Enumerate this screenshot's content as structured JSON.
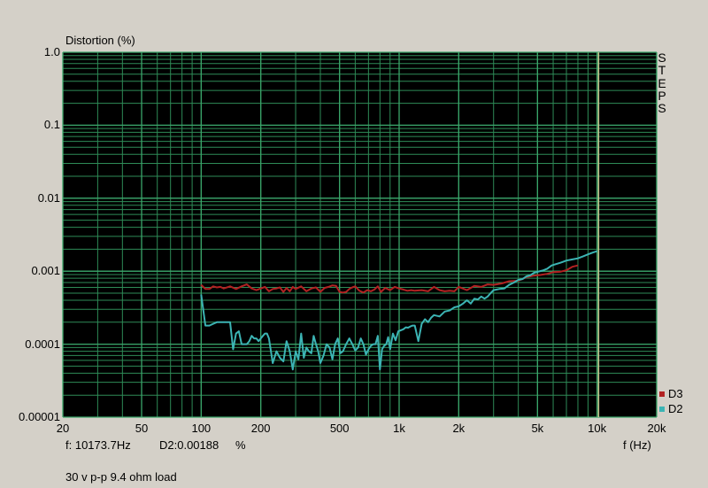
{
  "chart_data": {
    "type": "line",
    "ylabel": "Distortion (%)",
    "xlabel": "f (Hz)",
    "side_label": "STEPS",
    "x_scale": "log",
    "y_scale": "log",
    "xlim": [
      20,
      20000
    ],
    "ylim": [
      1e-05,
      1.0
    ],
    "grid": true,
    "background": "#000000",
    "grid_color": "#2e8b57",
    "legend_position": "bottom-right",
    "x_ticks": [
      20,
      50,
      100,
      200,
      500,
      1000,
      2000,
      5000,
      10000,
      20000
    ],
    "x_tick_labels": [
      "20",
      "50",
      "100",
      "200",
      "500",
      "1k",
      "2k",
      "5k",
      "10k",
      "20k"
    ],
    "y_ticks": [
      1e-05,
      0.0001,
      0.001,
      0.01,
      0.1,
      1.0
    ],
    "y_tick_labels": [
      "0.00001",
      "0.0001",
      "0.001",
      "0.01",
      "0.1",
      "1.0"
    ],
    "cursor_x": 10173.7,
    "series": [
      {
        "name": "D3",
        "color": "#b22222",
        "x": [
          100,
          105,
          110,
          115,
          120,
          125,
          130,
          140,
          150,
          160,
          170,
          180,
          190,
          200,
          210,
          220,
          230,
          240,
          250,
          260,
          270,
          280,
          290,
          300,
          320,
          340,
          360,
          380,
          400,
          420,
          440,
          460,
          480,
          500,
          520,
          540,
          560,
          580,
          600,
          630,
          660,
          690,
          720,
          750,
          780,
          810,
          850,
          900,
          950,
          1000,
          1050,
          1100,
          1150,
          1200,
          1300,
          1400,
          1500,
          1600,
          1700,
          1800,
          1900,
          2000,
          2200,
          2400,
          2600,
          2800,
          3000,
          3300,
          3600,
          4000,
          4400,
          4800,
          5200,
          5600,
          6000,
          6500,
          7000,
          7500,
          8000
        ],
        "y": [
          0.00065,
          0.00057,
          0.00057,
          0.00062,
          0.0006,
          0.00061,
          0.00058,
          0.00062,
          0.00057,
          0.00062,
          0.00066,
          0.00058,
          0.00055,
          0.00058,
          0.00061,
          0.00053,
          0.00057,
          0.00058,
          0.0006,
          0.00052,
          0.00059,
          0.00053,
          0.00061,
          0.00057,
          0.00062,
          0.00053,
          0.00058,
          0.0006,
          0.00052,
          0.00059,
          0.00061,
          0.00064,
          0.00063,
          0.00052,
          0.00051,
          0.00052,
          0.00057,
          0.0006,
          0.00062,
          0.00054,
          0.00051,
          0.00055,
          0.00053,
          0.00056,
          0.00062,
          0.00052,
          0.00059,
          0.00055,
          0.00061,
          0.00058,
          0.00056,
          0.00054,
          0.00055,
          0.00054,
          0.00055,
          0.00053,
          0.00061,
          0.00055,
          0.00053,
          0.00054,
          0.00053,
          0.00061,
          0.00055,
          0.00063,
          0.00061,
          0.00066,
          0.00065,
          0.00068,
          0.00073,
          0.00074,
          0.00083,
          0.00087,
          0.00089,
          0.00092,
          0.00097,
          0.00098,
          0.00103,
          0.00115,
          0.0012
        ]
      },
      {
        "name": "D2",
        "color": "#3cb4b4",
        "x": [
          100,
          105,
          110,
          115,
          120,
          125,
          130,
          135,
          140,
          145,
          150,
          155,
          160,
          165,
          170,
          175,
          180,
          185,
          190,
          195,
          200,
          205,
          210,
          215,
          220,
          230,
          240,
          250,
          260,
          270,
          280,
          290,
          300,
          310,
          320,
          330,
          340,
          350,
          360,
          370,
          380,
          390,
          400,
          415,
          430,
          445,
          460,
          475,
          490,
          505,
          520,
          540,
          560,
          580,
          600,
          620,
          640,
          660,
          680,
          700,
          720,
          740,
          760,
          780,
          800,
          820,
          840,
          860,
          880,
          900,
          930,
          960,
          990,
          1020,
          1050,
          1080,
          1110,
          1140,
          1170,
          1200,
          1250,
          1300,
          1350,
          1400,
          1450,
          1500,
          1600,
          1700,
          1800,
          1900,
          2000,
          2100,
          2200,
          2300,
          2400,
          2500,
          2600,
          2700,
          2800,
          2900,
          3000,
          3200,
          3400,
          3600,
          3800,
          4000,
          4200,
          4400,
          4600,
          4800,
          5000,
          5300,
          5600,
          5900,
          6200,
          6500,
          7000,
          7500,
          8000,
          8500,
          9000,
          9500,
          10000
        ],
        "y": [
          0.00048,
          0.00018,
          0.00018,
          0.00019,
          0.0002,
          0.0002,
          0.0002,
          0.0002,
          0.0002,
          8.5e-05,
          0.00014,
          0.00015,
          0.0001,
          0.0001,
          0.0001,
          0.00011,
          0.00013,
          0.00012,
          0.00012,
          0.00011,
          0.00012,
          0.00013,
          0.00014,
          0.00014,
          0.00012,
          5.5e-05,
          8e-05,
          6.5e-05,
          5.8e-05,
          0.00011,
          8e-05,
          4.5e-05,
          8e-05,
          6.2e-05,
          0.00014,
          6.5e-05,
          9e-05,
          8e-05,
          7.5e-05,
          0.00013,
          0.0001,
          8e-05,
          5.5e-05,
          7e-05,
          0.0001,
          9e-05,
          6.2e-05,
          0.0001,
          0.00012,
          7.5e-05,
          8e-05,
          0.0001,
          0.00012,
          0.0001,
          8.2e-05,
          9e-05,
          0.00012,
          0.0001,
          7.2e-05,
          8.5e-05,
          9.5e-05,
          0.0001,
          0.0001,
          0.00013,
          4.5e-05,
          8.5e-05,
          9.5e-05,
          0.0001,
          0.000125,
          8.5e-05,
          0.00014,
          0.000113,
          0.00015,
          0.000155,
          0.00016,
          0.00017,
          0.000168,
          0.000175,
          0.00018,
          0.00018,
          0.00011,
          0.00019,
          0.00022,
          0.0002,
          0.00023,
          0.00025,
          0.00024,
          0.00028,
          0.00029,
          0.00032,
          0.00033,
          0.00036,
          0.0004,
          0.00036,
          0.00042,
          0.00041,
          0.00045,
          0.00042,
          0.00045,
          0.0005,
          0.00055,
          0.00057,
          0.00058,
          0.00065,
          0.0007,
          0.00076,
          0.00078,
          0.00085,
          0.00088,
          0.00095,
          0.00098,
          0.00102,
          0.00108,
          0.0012,
          0.00125,
          0.0013,
          0.0014,
          0.00145,
          0.0015,
          0.0016,
          0.0017,
          0.0018,
          0.00188
        ]
      }
    ]
  },
  "readout": {
    "freq": "f: 10173.7Hz",
    "value": "D2:0.00188",
    "unit": "%"
  },
  "caption": "30 v p-p 9.4 ohm load"
}
